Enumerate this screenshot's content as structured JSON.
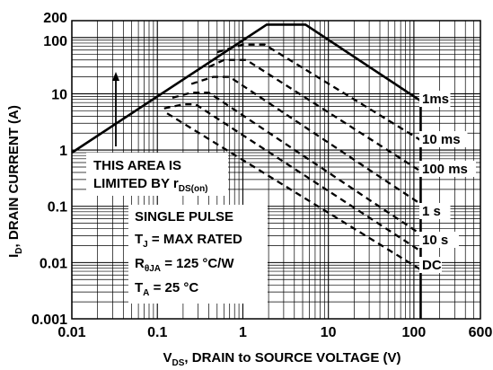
{
  "chart_data": {
    "type": "line",
    "title": "",
    "x_scale": "log",
    "y_scale": "log",
    "xlim": [
      0.01,
      600
    ],
    "ylim": [
      0.001,
      200
    ],
    "grid": true,
    "xlabel": {
      "prefix": "V",
      "sub": "DS",
      "suffix": ", DRAIN to SOURCE VOLTAGE (V)"
    },
    "ylabel": {
      "prefix": "I",
      "sub": "D",
      "suffix": ", DRAIN CURRENT (A)"
    },
    "x_ticks": [
      {
        "value": 0.01,
        "label": "0.01"
      },
      {
        "value": 0.1,
        "label": "0.1"
      },
      {
        "value": 1,
        "label": "1"
      },
      {
        "value": 10,
        "label": "10"
      },
      {
        "value": 100,
        "label": "100"
      },
      {
        "value": 600,
        "label": "600"
      }
    ],
    "y_ticks": [
      {
        "value": 0.001,
        "label": "0.001"
      },
      {
        "value": 0.01,
        "label": "0.01"
      },
      {
        "value": 0.1,
        "label": "0.1"
      },
      {
        "value": 1,
        "label": "1"
      },
      {
        "value": 10,
        "label": "10"
      },
      {
        "value": 100,
        "label": "100"
      },
      {
        "value": 200,
        "label": "200"
      }
    ],
    "boundary": {
      "x": [
        0.01,
        1.9,
        5.4,
        120,
        120
      ],
      "y": [
        0.9,
        170,
        170,
        7.5,
        0.001
      ]
    },
    "series": [
      {
        "name": "1ms",
        "x": [
          0.5,
          1.0,
          1.8,
          120
        ],
        "y": [
          55,
          75,
          75,
          1.5
        ]
      },
      {
        "name": "10 ms",
        "x": [
          0.4,
          0.6,
          1.1,
          120
        ],
        "y": [
          30,
          40,
          40,
          0.42
        ]
      },
      {
        "name": "100 ms",
        "x": [
          0.25,
          0.45,
          0.7,
          120
        ],
        "y": [
          15,
          20,
          20,
          0.11
        ]
      },
      {
        "name": "1 s",
        "x": [
          0.15,
          0.25,
          0.4,
          120
        ],
        "y": [
          8.5,
          10.5,
          10.5,
          0.032
        ]
      },
      {
        "name": "10 s",
        "x": [
          0.12,
          0.2,
          0.28,
          120
        ],
        "y": [
          5.5,
          6.5,
          6.5,
          0.016
        ]
      },
      {
        "name": "DC",
        "x": [
          0.13,
          120
        ],
        "y": [
          4.5,
          0.0075
        ]
      }
    ],
    "annotations": {
      "limited_line1": "THIS AREA IS",
      "limited_line2": "LIMITED BY r",
      "limited_sub": "DS(on)",
      "single_pulse": "SINGLE PULSE",
      "tj": {
        "prefix": "T",
        "sub": "J",
        "suffix": " = MAX RATED"
      },
      "rth": {
        "prefix": "R",
        "sub": "θJA",
        "suffix": " = 125 °C/W"
      },
      "ta": {
        "prefix": "T",
        "sub": "A",
        "suffix": " = 25 °C"
      }
    }
  }
}
